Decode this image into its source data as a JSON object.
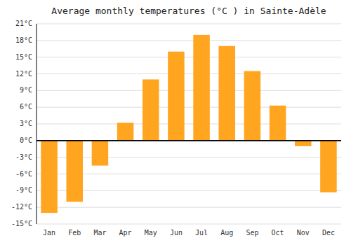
{
  "chart_data": {
    "type": "bar",
    "title": "Average monthly temperatures (°C ) in Sainte-Adèle",
    "categories": [
      "Jan",
      "Feb",
      "Mar",
      "Apr",
      "May",
      "Jun",
      "Jul",
      "Aug",
      "Sep",
      "Oct",
      "Nov",
      "Dec"
    ],
    "values": [
      -13,
      -11,
      -4.5,
      3.2,
      11,
      16,
      19,
      17,
      12.5,
      6.3,
      -1,
      -9.3
    ],
    "color": "#FFA520",
    "ylim": [
      -15,
      21
    ],
    "yticks": [
      {
        "value": -15,
        "label": "-15°C"
      },
      {
        "value": -12,
        "label": "-12°C"
      },
      {
        "value": -9,
        "label": "-9°C"
      },
      {
        "value": -6,
        "label": "-6°C"
      },
      {
        "value": -3,
        "label": "-3°C"
      },
      {
        "value": 0,
        "label": "0°C"
      },
      {
        "value": 3,
        "label": "3°C"
      },
      {
        "value": 6,
        "label": "6°C"
      },
      {
        "value": 9,
        "label": "9°C"
      },
      {
        "value": 12,
        "label": "12°C"
      },
      {
        "value": 15,
        "label": "15°C"
      },
      {
        "value": 18,
        "label": "18°C"
      },
      {
        "value": 21,
        "label": "21°C"
      }
    ],
    "grid": true
  }
}
